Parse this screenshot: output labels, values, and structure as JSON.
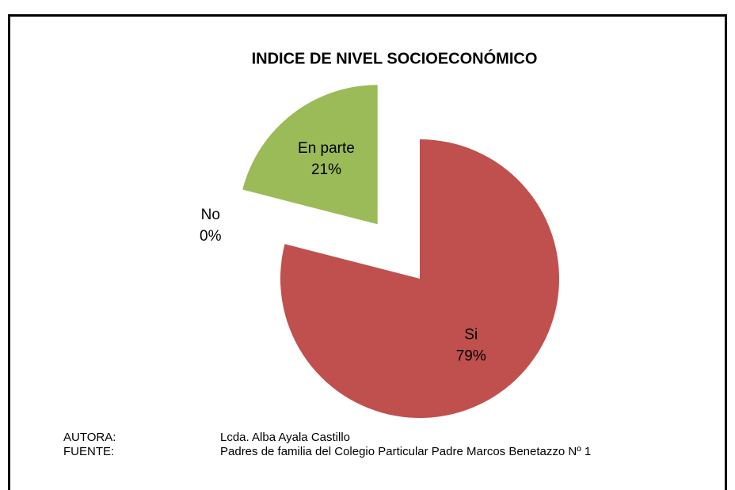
{
  "chart_data": {
    "type": "pie",
    "title": "INDICE DE NIVEL SOCIOECONÓMICO",
    "categories": [
      "Si",
      "No",
      "En parte"
    ],
    "values": [
      79,
      0,
      21
    ],
    "value_labels": [
      "79%",
      "0%",
      "21%"
    ],
    "colors": [
      "#c0504d",
      "#4f81bd",
      "#9bbb59"
    ],
    "notes": [
      {
        "label": "AUTORA:",
        "text": "Lcda. Alba Ayala Castillo"
      },
      {
        "label": "FUENTE:",
        "text": "Padres de familia del Colegio Particular Padre Marcos Benetazzo Nº 1"
      }
    ]
  }
}
